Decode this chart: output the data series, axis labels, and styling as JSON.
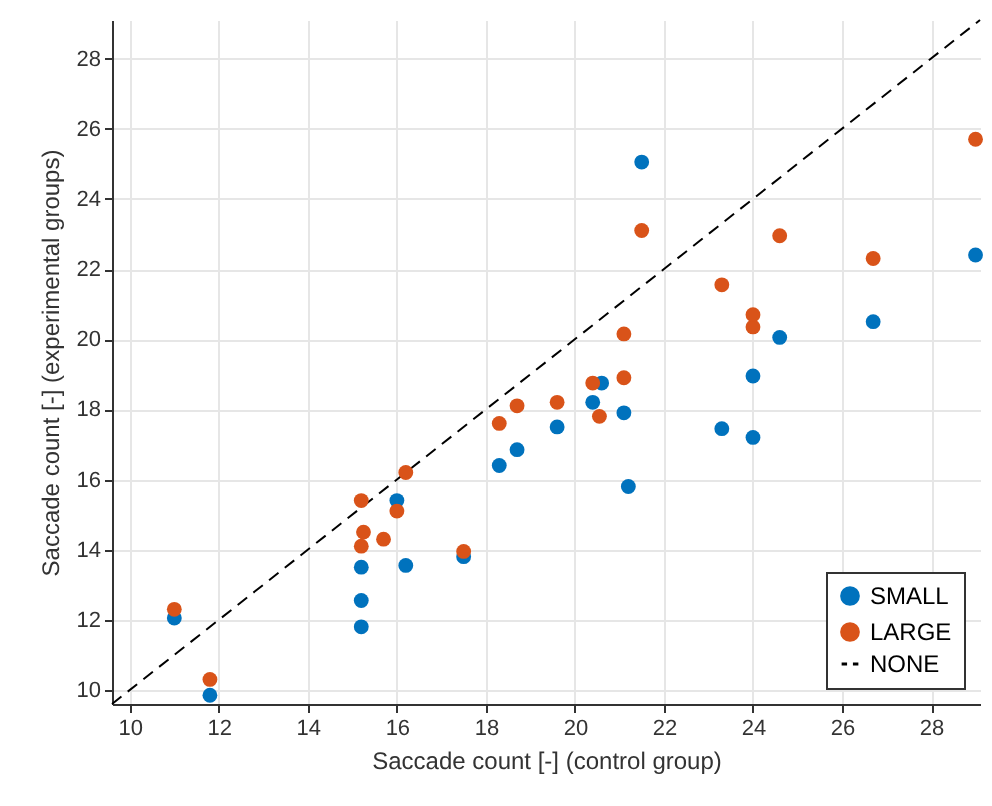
{
  "chart_data": {
    "type": "scatter",
    "xlabel": "Saccade count [-] (control group)",
    "ylabel": "Saccade count [-] (experimental groups)",
    "xlim": [
      9.6,
      29.1
    ],
    "ylim": [
      9.6,
      29.1
    ],
    "xticks": [
      10,
      12,
      14,
      16,
      18,
      20,
      22,
      24,
      26,
      28
    ],
    "yticks": [
      10,
      12,
      14,
      16,
      18,
      20,
      22,
      24,
      26,
      28
    ],
    "grid": true,
    "legend": "bottom right",
    "series": [
      {
        "name": "SMALL",
        "color": "#0072bd",
        "marker": "circle",
        "x": [
          11,
          11.8,
          15.2,
          15.2,
          15.2,
          16.0,
          16.2,
          17.5,
          18.3,
          18.7,
          19.6,
          20.4,
          20.6,
          21.1,
          21.2,
          21.5,
          23.3,
          24.0,
          24.0,
          24.6,
          26.7,
          29.0
        ],
        "values": [
          12.05,
          9.85,
          13.5,
          12.55,
          11.8,
          15.4,
          13.55,
          13.8,
          16.4,
          16.85,
          17.5,
          18.2,
          18.75,
          17.9,
          15.8,
          25.05,
          17.45,
          18.95,
          17.2,
          20.05,
          20.5,
          22.4
        ]
      },
      {
        "name": "LARGE",
        "color": "#d95319",
        "marker": "circle",
        "x": [
          11,
          11.8,
          15.2,
          15.2,
          15.25,
          15.7,
          16.0,
          16.2,
          17.5,
          18.3,
          18.7,
          19.6,
          20.4,
          20.55,
          21.1,
          21.1,
          21.5,
          23.3,
          24.0,
          24.0,
          24.6,
          26.7,
          29.0
        ],
        "values": [
          12.3,
          10.3,
          15.4,
          14.1,
          14.5,
          14.3,
          15.1,
          16.2,
          13.95,
          17.6,
          18.1,
          18.2,
          18.75,
          17.8,
          18.9,
          20.15,
          23.1,
          21.55,
          20.35,
          20.7,
          22.95,
          22.3,
          25.7
        ]
      },
      {
        "name": "NONE",
        "type": "line",
        "color": "#000000",
        "line_style": "dashed",
        "x": [
          9.6,
          29.1
        ],
        "values": [
          9.6,
          29.1
        ]
      }
    ]
  }
}
